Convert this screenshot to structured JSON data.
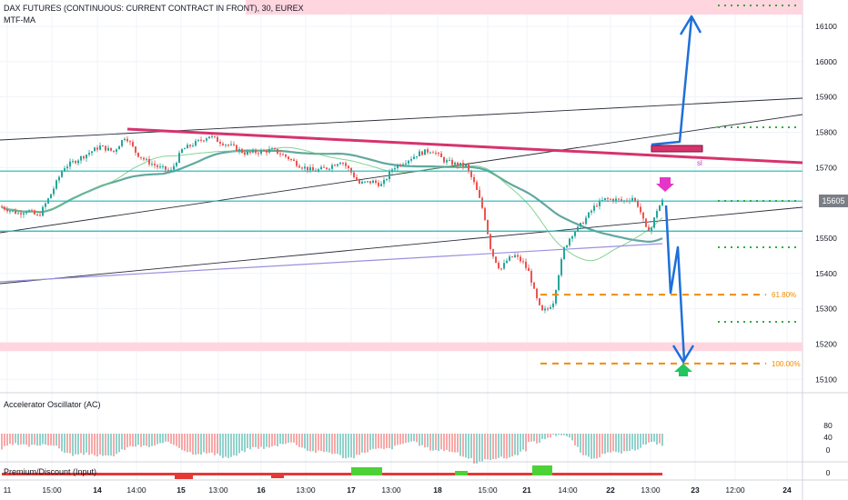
{
  "header": {
    "title": "DAX FUTURES (CONTINUOUS: CURRENT CONTRACT IN FRONT), 30, EUREX",
    "indicator": "MTF-MA"
  },
  "price_axis": {
    "labels": [
      "16100",
      "16000",
      "15900",
      "15800",
      "15700",
      "15605",
      "15500",
      "15400",
      "15300",
      "15200",
      "15100"
    ],
    "last_price": "15605"
  },
  "time_axis": {
    "labels": [
      "11",
      "15:00",
      "14",
      "14:00",
      "15",
      "13:00",
      "16",
      "13:00",
      "17",
      "13:00",
      "18",
      "15:00",
      "21",
      "14:00",
      "22",
      "13:00",
      "23",
      "12:00",
      "24"
    ]
  },
  "annotations": {
    "fib_618": "61.80%",
    "fib_100": "100.00%",
    "sl": "sl"
  },
  "panes": {
    "ac_title": "Accelerator Oscillator (AC)",
    "ac_scale": [
      "80",
      "40",
      "0"
    ],
    "pd_title": "Premium/Discount (Input)",
    "pd_scale": [
      "0"
    ]
  },
  "colors": {
    "bull": "#26a69a",
    "bear": "#ef5350",
    "trendline_pink": "#d6336c",
    "cyan": "#17b8b8",
    "arrow_blue": "#1e6fd9",
    "fib_orange": "#f08c00",
    "target_green": "#2eae3b",
    "zone_pink": "#ffd6e0"
  },
  "chart_data": {
    "type": "candlestick",
    "symbol": "DAX FUTURES",
    "timeframe": "30",
    "exchange": "EUREX",
    "y_range": [
      15100,
      16100
    ],
    "last_price": 15605,
    "anchors": [
      [
        0,
        15590
      ],
      [
        20,
        15570
      ],
      [
        30,
        15580
      ],
      [
        42,
        15560
      ],
      [
        55,
        15620
      ],
      [
        70,
        15700
      ],
      [
        90,
        15730
      ],
      [
        110,
        15760
      ],
      [
        125,
        15745
      ],
      [
        138,
        15790
      ],
      [
        150,
        15740
      ],
      [
        160,
        15720
      ],
      [
        175,
        15700
      ],
      [
        188,
        15690
      ],
      [
        200,
        15750
      ],
      [
        215,
        15770
      ],
      [
        230,
        15790
      ],
      [
        240,
        15775
      ],
      [
        255,
        15760
      ],
      [
        270,
        15740
      ],
      [
        285,
        15745
      ],
      [
        300,
        15750
      ],
      [
        315,
        15730
      ],
      [
        330,
        15705
      ],
      [
        345,
        15690
      ],
      [
        360,
        15700
      ],
      [
        375,
        15720
      ],
      [
        385,
        15690
      ],
      [
        395,
        15655
      ],
      [
        410,
        15660
      ],
      [
        420,
        15650
      ],
      [
        432,
        15700
      ],
      [
        447,
        15720
      ],
      [
        460,
        15740
      ],
      [
        475,
        15750
      ],
      [
        488,
        15720
      ],
      [
        500,
        15710
      ],
      [
        512,
        15705
      ],
      [
        522,
        15650
      ],
      [
        532,
        15570
      ],
      [
        540,
        15460
      ],
      [
        550,
        15410
      ],
      [
        558,
        15440
      ],
      [
        566,
        15450
      ],
      [
        575,
        15430
      ],
      [
        582,
        15400
      ],
      [
        588,
        15340
      ],
      [
        595,
        15290
      ],
      [
        602,
        15300
      ],
      [
        608,
        15320
      ],
      [
        614,
        15400
      ],
      [
        620,
        15470
      ],
      [
        628,
        15510
      ],
      [
        636,
        15530
      ],
      [
        645,
        15560
      ],
      [
        655,
        15595
      ],
      [
        665,
        15610
      ],
      [
        675,
        15610
      ],
      [
        685,
        15605
      ],
      [
        695,
        15615
      ],
      [
        702,
        15590
      ],
      [
        710,
        15525
      ],
      [
        716,
        15530
      ],
      [
        722,
        15580
      ],
      [
        728,
        15605
      ]
    ],
    "levels": [
      {
        "price": 15690,
        "color": "cyan"
      },
      {
        "price": 15605,
        "color": "cyan"
      },
      {
        "price": 15520,
        "color": "cyan"
      }
    ],
    "fib_levels": [
      {
        "label": "61.80%",
        "price": 15340
      },
      {
        "label": "100.00%",
        "price": 15145
      }
    ],
    "zones": [
      {
        "from": 16120,
        "to": 16180
      },
      {
        "from": 15180,
        "to": 15205
      }
    ],
    "oscillator_ac_range": [
      -40,
      100
    ],
    "premium_discount_range": [
      -5,
      5
    ]
  }
}
